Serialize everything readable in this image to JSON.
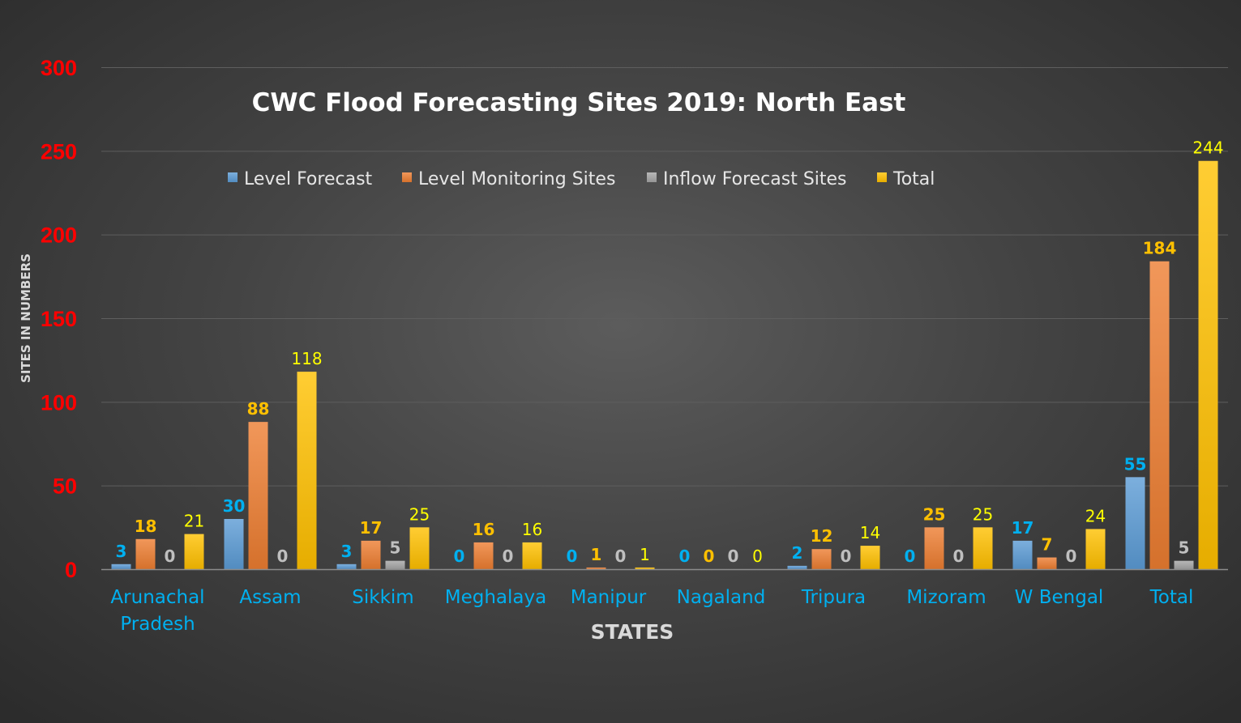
{
  "chart_data": {
    "type": "bar",
    "title": "CWC Flood Forecasting Sites 2019: North East",
    "xlabel": "STATES",
    "ylabel": "SITES IN NUMBERS",
    "ylim": [
      0,
      300
    ],
    "yticks": [
      "0",
      "50",
      "100",
      "150",
      "200",
      "250",
      "300"
    ],
    "grid": true,
    "legend_position": "top",
    "categories": [
      [
        "Arunachal",
        "Pradesh"
      ],
      [
        "Assam"
      ],
      [
        "Sikkim"
      ],
      [
        "Meghalaya"
      ],
      [
        "Manipur"
      ],
      [
        "Nagaland"
      ],
      [
        "Tripura"
      ],
      [
        "Mizoram"
      ],
      [
        "W Bengal"
      ],
      [
        "Total"
      ]
    ],
    "series": [
      {
        "name": "Level Forecast",
        "values": [
          3,
          30,
          3,
          0,
          0,
          0,
          2,
          0,
          17,
          55
        ],
        "color": "#5b9bd5",
        "label_color": "#00b0f0"
      },
      {
        "name": "Level Monitoring Sites",
        "values": [
          18,
          88,
          17,
          16,
          1,
          0,
          12,
          25,
          7,
          184
        ],
        "color": "#ed7d31",
        "label_color": "#ffc000"
      },
      {
        "name": "Inflow Forecast Sites",
        "values": [
          0,
          0,
          5,
          0,
          0,
          0,
          0,
          0,
          0,
          5
        ],
        "color": "#a5a5a5",
        "label_color": "#bfbfbf"
      },
      {
        "name": "Total",
        "values": [
          21,
          118,
          25,
          16,
          1,
          0,
          14,
          25,
          24,
          244
        ],
        "color": "#ffc000",
        "label_color": "#ffff00"
      }
    ]
  }
}
